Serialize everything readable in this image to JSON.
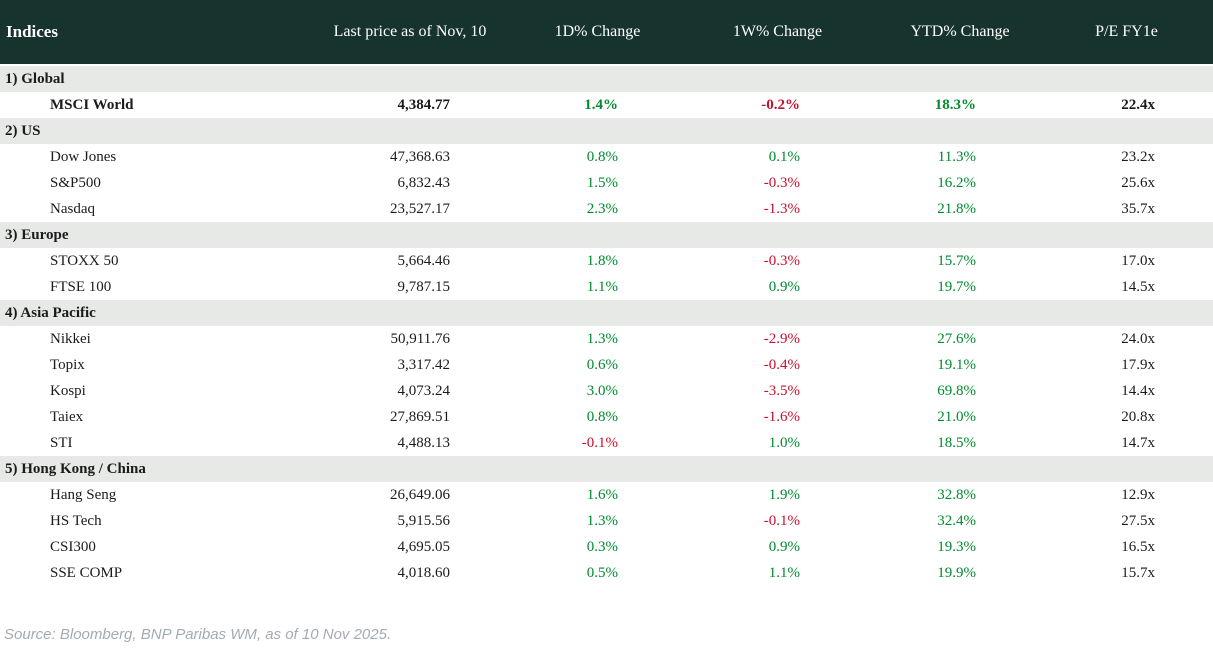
{
  "header": {
    "col_indices": "Indices",
    "col_last_price": "Last price as of Nov, 10",
    "col_1d": "1D% Change",
    "col_1w": "1W% Change",
    "col_ytd": "YTD% Change",
    "col_pe": "P/E FY1e"
  },
  "sections": [
    {
      "label": "1) Global",
      "rows": [
        {
          "name": "MSCI World",
          "price": "4,384.77",
          "d1": "1.4%",
          "w1": "-0.2%",
          "ytd": "18.3%",
          "pe": "22.4x",
          "bold": true
        }
      ]
    },
    {
      "label": "2) US",
      "rows": [
        {
          "name": "Dow Jones",
          "price": "47,368.63",
          "d1": "0.8%",
          "w1": "0.1%",
          "ytd": "11.3%",
          "pe": "23.2x"
        },
        {
          "name": "S&P500",
          "price": "6,832.43",
          "d1": "1.5%",
          "w1": "-0.3%",
          "ytd": "16.2%",
          "pe": "25.6x"
        },
        {
          "name": "Nasdaq",
          "price": "23,527.17",
          "d1": "2.3%",
          "w1": "-1.3%",
          "ytd": "21.8%",
          "pe": "35.7x"
        }
      ]
    },
    {
      "label": "3) Europe",
      "rows": [
        {
          "name": "STOXX 50",
          "price": "5,664.46",
          "d1": "1.8%",
          "w1": "-0.3%",
          "ytd": "15.7%",
          "pe": "17.0x"
        },
        {
          "name": "FTSE 100",
          "price": "9,787.15",
          "d1": "1.1%",
          "w1": "0.9%",
          "ytd": "19.7%",
          "pe": "14.5x"
        }
      ]
    },
    {
      "label": "4) Asia Pacific",
      "rows": [
        {
          "name": "Nikkei",
          "price": "50,911.76",
          "d1": "1.3%",
          "w1": "-2.9%",
          "ytd": "27.6%",
          "pe": "24.0x"
        },
        {
          "name": "Topix",
          "price": "3,317.42",
          "d1": "0.6%",
          "w1": "-0.4%",
          "ytd": "19.1%",
          "pe": "17.9x"
        },
        {
          "name": "Kospi",
          "price": "4,073.24",
          "d1": "3.0%",
          "w1": "-3.5%",
          "ytd": "69.8%",
          "pe": "14.4x"
        },
        {
          "name": "Taiex",
          "price": "27,869.51",
          "d1": "0.8%",
          "w1": "-1.6%",
          "ytd": "21.0%",
          "pe": "20.8x"
        },
        {
          "name": "STI",
          "price": "4,488.13",
          "d1": "-0.1%",
          "w1": "1.0%",
          "ytd": "18.5%",
          "pe": "14.7x"
        }
      ]
    },
    {
      "label": "5) Hong Kong / China",
      "rows": [
        {
          "name": "Hang Seng",
          "price": "26,649.06",
          "d1": "1.6%",
          "w1": "1.9%",
          "ytd": "32.8%",
          "pe": "12.9x"
        },
        {
          "name": "HS Tech",
          "price": "5,915.56",
          "d1": "1.3%",
          "w1": "-0.1%",
          "ytd": "32.4%",
          "pe": "27.5x"
        },
        {
          "name": "CSI300",
          "price": "4,695.05",
          "d1": "0.3%",
          "w1": "0.9%",
          "ytd": "19.3%",
          "pe": "16.5x"
        },
        {
          "name": "SSE COMP",
          "price": "4,018.60",
          "d1": "0.5%",
          "w1": "1.1%",
          "ytd": "19.9%",
          "pe": "15.7x"
        }
      ]
    }
  ],
  "footer": {
    "source": "Source: Bloomberg, BNP Paribas WM, as of 10 Nov 2025."
  },
  "colors": {
    "header_bg": "#17332d",
    "section_bg": "#e6e9e6",
    "positive": "#008a2e",
    "negative": "#c8102e"
  },
  "chart_data": {
    "type": "table",
    "title": "Indices",
    "columns": [
      "Indices",
      "Last price as of Nov, 10",
      "1D% Change",
      "1W% Change",
      "YTD% Change",
      "P/E FY1e"
    ],
    "rows": [
      {
        "section": "1) Global",
        "index": "MSCI World",
        "last_price": 4384.77,
        "change_1d_pct": 1.4,
        "change_1w_pct": -0.2,
        "change_ytd_pct": 18.3,
        "pe_fy1e": 22.4
      },
      {
        "section": "2) US",
        "index": "Dow Jones",
        "last_price": 47368.63,
        "change_1d_pct": 0.8,
        "change_1w_pct": 0.1,
        "change_ytd_pct": 11.3,
        "pe_fy1e": 23.2
      },
      {
        "section": "2) US",
        "index": "S&P500",
        "last_price": 6832.43,
        "change_1d_pct": 1.5,
        "change_1w_pct": -0.3,
        "change_ytd_pct": 16.2,
        "pe_fy1e": 25.6
      },
      {
        "section": "2) US",
        "index": "Nasdaq",
        "last_price": 23527.17,
        "change_1d_pct": 2.3,
        "change_1w_pct": -1.3,
        "change_ytd_pct": 21.8,
        "pe_fy1e": 35.7
      },
      {
        "section": "3) Europe",
        "index": "STOXX 50",
        "last_price": 5664.46,
        "change_1d_pct": 1.8,
        "change_1w_pct": -0.3,
        "change_ytd_pct": 15.7,
        "pe_fy1e": 17.0
      },
      {
        "section": "3) Europe",
        "index": "FTSE 100",
        "last_price": 9787.15,
        "change_1d_pct": 1.1,
        "change_1w_pct": 0.9,
        "change_ytd_pct": 19.7,
        "pe_fy1e": 14.5
      },
      {
        "section": "4) Asia Pacific",
        "index": "Nikkei",
        "last_price": 50911.76,
        "change_1d_pct": 1.3,
        "change_1w_pct": -2.9,
        "change_ytd_pct": 27.6,
        "pe_fy1e": 24.0
      },
      {
        "section": "4) Asia Pacific",
        "index": "Topix",
        "last_price": 3317.42,
        "change_1d_pct": 0.6,
        "change_1w_pct": -0.4,
        "change_ytd_pct": 19.1,
        "pe_fy1e": 17.9
      },
      {
        "section": "4) Asia Pacific",
        "index": "Kospi",
        "last_price": 4073.24,
        "change_1d_pct": 3.0,
        "change_1w_pct": -3.5,
        "change_ytd_pct": 69.8,
        "pe_fy1e": 14.4
      },
      {
        "section": "4) Asia Pacific",
        "index": "Taiex",
        "last_price": 27869.51,
        "change_1d_pct": 0.8,
        "change_1w_pct": -1.6,
        "change_ytd_pct": 21.0,
        "pe_fy1e": 20.8
      },
      {
        "section": "4) Asia Pacific",
        "index": "STI",
        "last_price": 4488.13,
        "change_1d_pct": -0.1,
        "change_1w_pct": 1.0,
        "change_ytd_pct": 18.5,
        "pe_fy1e": 14.7
      },
      {
        "section": "5) Hong Kong / China",
        "index": "Hang Seng",
        "last_price": 26649.06,
        "change_1d_pct": 1.6,
        "change_1w_pct": 1.9,
        "change_ytd_pct": 32.8,
        "pe_fy1e": 12.9
      },
      {
        "section": "5) Hong Kong / China",
        "index": "HS Tech",
        "last_price": 5915.56,
        "change_1d_pct": 1.3,
        "change_1w_pct": -0.1,
        "change_ytd_pct": 32.4,
        "pe_fy1e": 27.5
      },
      {
        "section": "5) Hong Kong / China",
        "index": "CSI300",
        "last_price": 4695.05,
        "change_1d_pct": 0.3,
        "change_1w_pct": 0.9,
        "change_ytd_pct": 19.3,
        "pe_fy1e": 16.5
      },
      {
        "section": "5) Hong Kong / China",
        "index": "SSE COMP",
        "last_price": 4018.6,
        "change_1d_pct": 0.5,
        "change_1w_pct": 1.1,
        "change_ytd_pct": 19.9,
        "pe_fy1e": 15.7
      }
    ],
    "source_note": "Source: Bloomberg, BNP Paribas WM, as of 10 Nov 2025.",
    "color_coding": "green = positive change, red = negative change"
  }
}
